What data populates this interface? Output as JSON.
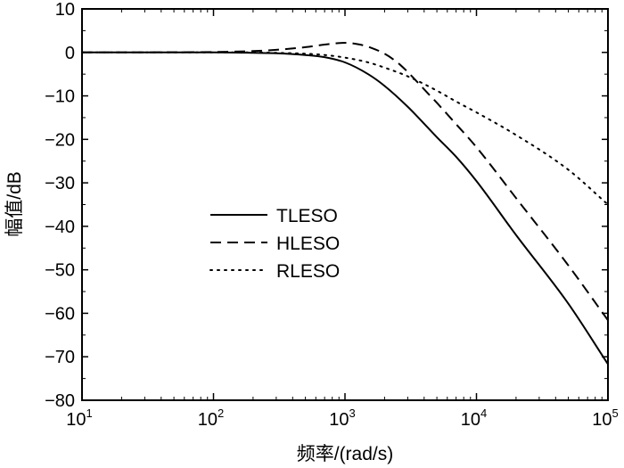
{
  "chart_data": {
    "type": "line",
    "title": "",
    "xlabel": "频率/(rad/s)",
    "ylabel": "幅值/dB",
    "xscale": "log",
    "xlim": [
      10,
      100000
    ],
    "ylim": [
      -80,
      10
    ],
    "xticks": [
      {
        "base": "10",
        "exp": "1",
        "value": 10
      },
      {
        "base": "10",
        "exp": "2",
        "value": 100
      },
      {
        "base": "10",
        "exp": "3",
        "value": 1000
      },
      {
        "base": "10",
        "exp": "4",
        "value": 10000
      },
      {
        "base": "10",
        "exp": "5",
        "value": 100000
      }
    ],
    "yticks": [
      10,
      0,
      -10,
      -20,
      -30,
      -40,
      -50,
      -60,
      -70,
      -80
    ],
    "legend_position": "center-left",
    "series": [
      {
        "name": "TLESO",
        "style": "solid",
        "x": [
          10,
          100,
          200,
          300,
          500,
          700,
          1000,
          1500,
          2000,
          3000,
          5000,
          7000,
          10000,
          20000,
          50000,
          100000
        ],
        "y": [
          0,
          0,
          -0.1,
          -0.2,
          -0.6,
          -1.1,
          -2.3,
          -5,
          -7.7,
          -12.5,
          -19.5,
          -24,
          -29.6,
          -42,
          -57.8,
          -71.7
        ]
      },
      {
        "name": "HLESO",
        "style": "dashed",
        "x": [
          10,
          100,
          200,
          300,
          500,
          700,
          1000,
          1300,
          1600,
          2000,
          2500,
          3000,
          4000,
          5000,
          7000,
          10000,
          20000,
          50000,
          100000
        ],
        "y": [
          0,
          0.1,
          0.3,
          0.6,
          1.2,
          1.8,
          2.2,
          1.8,
          1,
          -0.3,
          -2.3,
          -4.5,
          -8.5,
          -11.6,
          -16.5,
          -21.8,
          -33.5,
          -49,
          -61.6
        ]
      },
      {
        "name": "RLESO",
        "style": "dotted",
        "x": [
          10,
          100,
          200,
          300,
          500,
          700,
          1000,
          1500,
          2000,
          3000,
          5000,
          7000,
          10000,
          20000,
          50000,
          100000
        ],
        "y": [
          0,
          0,
          0,
          -0.1,
          -0.3,
          -0.6,
          -1.2,
          -2.3,
          -3.5,
          -5.5,
          -8.8,
          -11.3,
          -13.8,
          -19,
          -27,
          -35
        ]
      }
    ]
  }
}
